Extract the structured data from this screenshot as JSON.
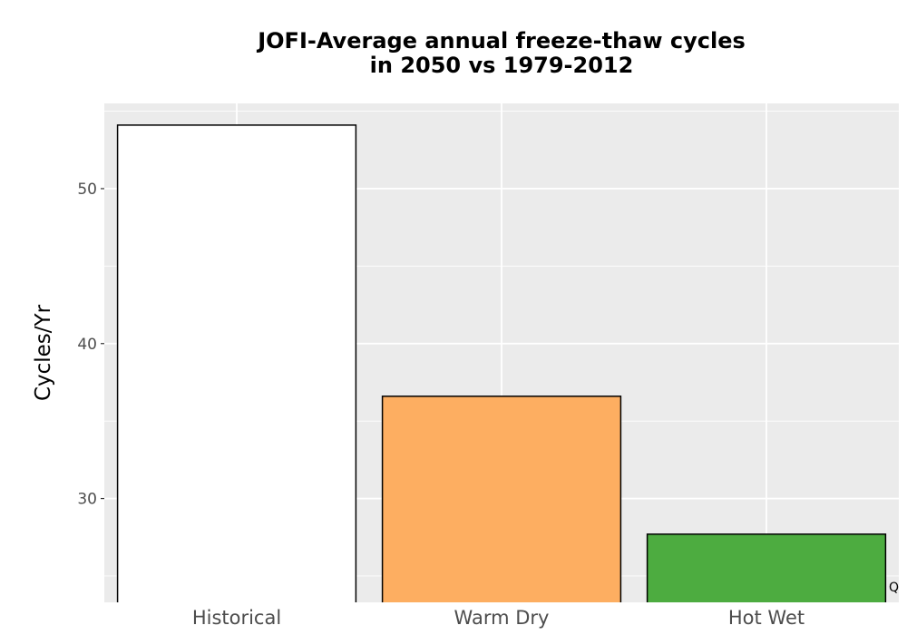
{
  "chart_data": {
    "type": "bar",
    "title_lines": [
      "JOFI-Average annual freeze-thaw cycles",
      "in 2050 vs 1979-2012"
    ],
    "xlabel": "",
    "ylabel": "Cycles/Yr",
    "categories": [
      "Historical",
      "Warm Dry",
      "Hot Wet"
    ],
    "values": [
      54.1,
      36.6,
      27.7
    ],
    "colors": [
      "#ffffff",
      "#fdae61",
      "#4dac40"
    ],
    "ylim": [
      23.3,
      55.5
    ],
    "y_ticks": [
      30,
      40,
      50
    ],
    "y_tick_labels": [
      "30",
      "40",
      "50"
    ],
    "grid": true,
    "panel_background": "#ebebeb",
    "grid_color": "#ffffff",
    "bar_outline": "#000000"
  },
  "corner_mark": "Q"
}
